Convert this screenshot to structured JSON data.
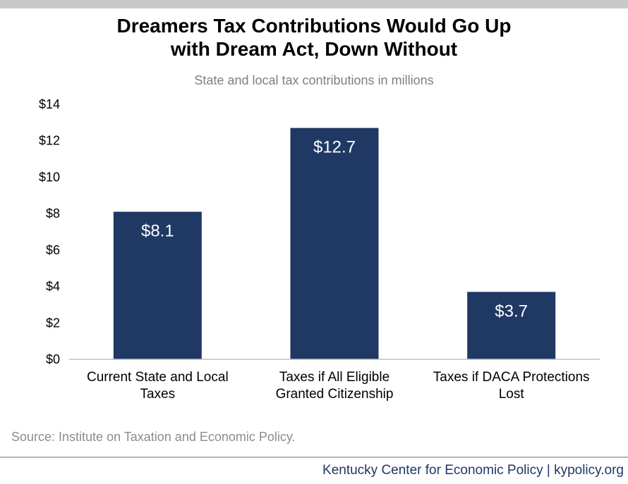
{
  "header": {
    "title_line1": "Dreamers Tax Contributions Would Go Up",
    "title_line2": "with Dream Act, Down Without",
    "subtitle": "State and local tax contributions in millions"
  },
  "footer": {
    "source": "Source: Institute on Taxation and Economic Policy.",
    "credit": "Kentucky Center for Economic Policy | kypolicy.org"
  },
  "colors": {
    "bar": "#1f3864",
    "bar_label": "#ffffff",
    "axis_text": "#000000",
    "top_band": "#c8c8c8"
  },
  "chart_data": {
    "type": "bar",
    "categories": [
      [
        "Current State and Local",
        "Taxes"
      ],
      [
        "Taxes if All Eligible",
        "Granted Citizenship"
      ],
      [
        "Taxes if DACA Protections",
        "Lost"
      ]
    ],
    "values": [
      8.1,
      12.7,
      3.7
    ],
    "data_labels": [
      "$8.1",
      "$12.7",
      "$3.7"
    ],
    "ylim": [
      0,
      14
    ],
    "yticks": [
      0,
      2,
      4,
      6,
      8,
      10,
      12,
      14
    ],
    "ytick_labels": [
      "$0",
      "$2",
      "$4",
      "$6",
      "$8",
      "$10",
      "$12",
      "$14"
    ],
    "grid": false,
    "legend": "none"
  }
}
